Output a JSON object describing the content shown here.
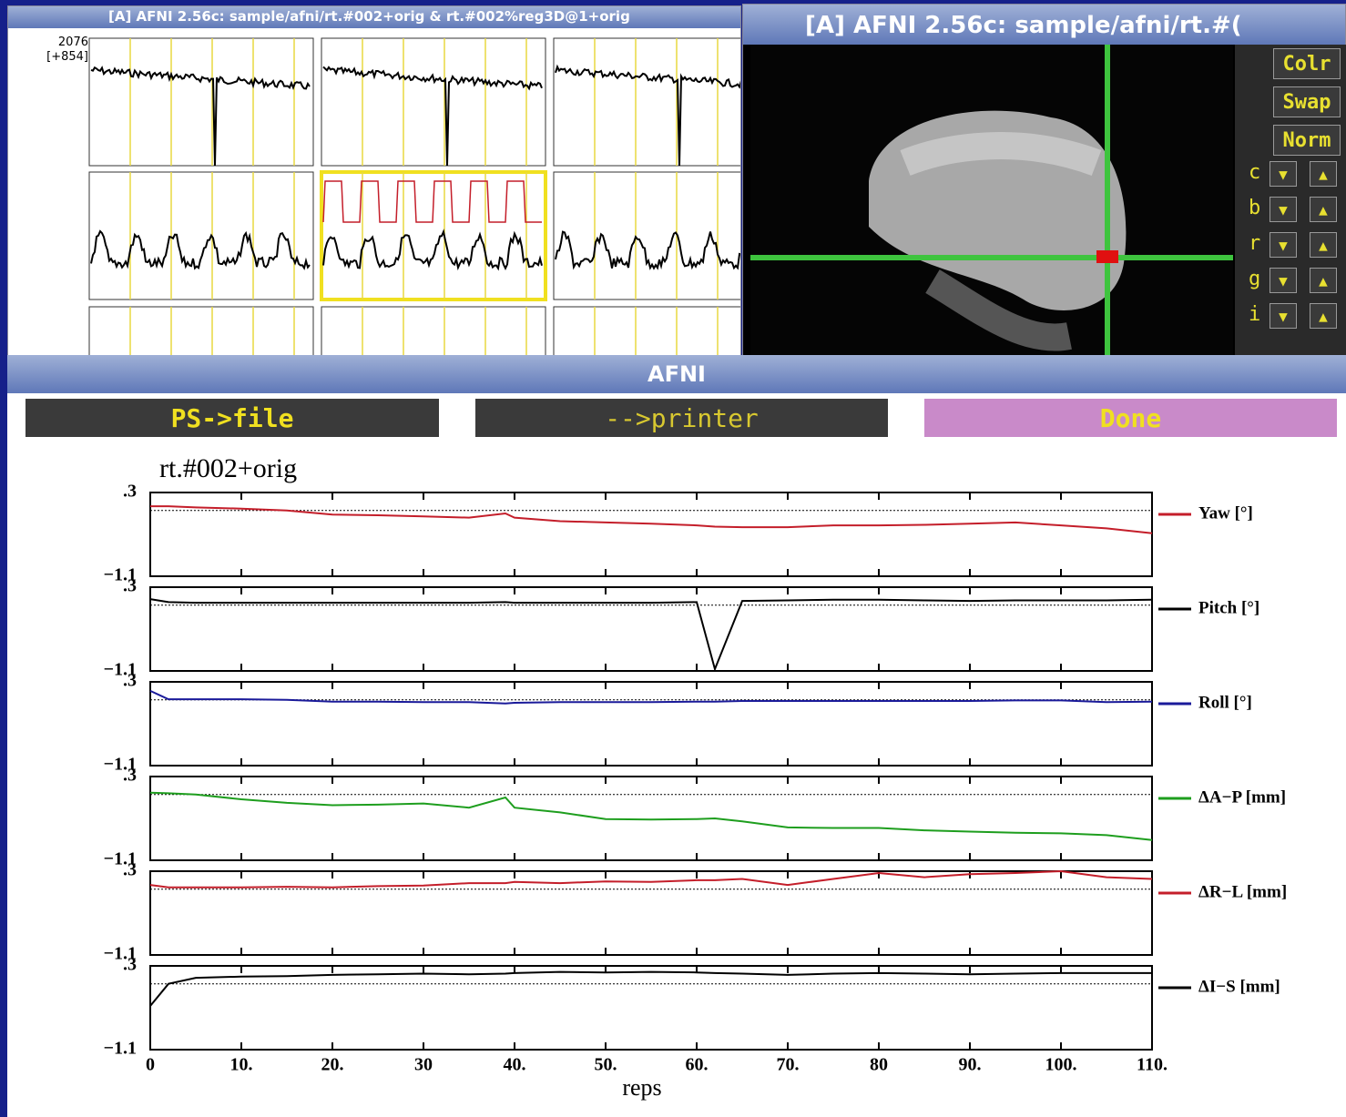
{
  "graph_window": {
    "title": "[A] AFNI 2.56c: sample/afni/rt.#002+orig & rt.#002%reg3D@1+orig",
    "top_value": "2076",
    "scale": "[+854]"
  },
  "image_window": {
    "title": "[A] AFNI 2.56c: sample/afni/rt.#(",
    "buttons": [
      "Colr",
      "Swap",
      "Norm"
    ],
    "row_labels": [
      "c",
      "b",
      "r",
      "g",
      "i"
    ]
  },
  "plot_window": {
    "title": "AFNI",
    "buttons": [
      "PS->file",
      "-->printer",
      "Done"
    ]
  },
  "chart_data": {
    "type": "line",
    "subplots": true,
    "title": "rt.#002+orig",
    "x_label": "reps",
    "x": [
      0,
      2,
      5,
      10,
      15,
      20,
      25,
      30,
      35,
      39,
      40,
      45,
      50,
      55,
      60,
      62,
      65,
      70,
      75,
      80,
      85,
      90,
      95,
      100,
      105,
      110
    ],
    "xlim": [
      0,
      110
    ],
    "xticks": [
      0,
      {
        "value": 10,
        "label": "10."
      },
      {
        "value": 20,
        "label": "20."
      },
      30,
      {
        "value": 40,
        "label": "40."
      },
      {
        "value": 50,
        "label": "50."
      },
      {
        "value": 60,
        "label": "60."
      },
      {
        "value": 70,
        "label": "70."
      },
      80,
      {
        "value": 90,
        "label": "90."
      },
      {
        "value": 100,
        "label": "100."
      },
      {
        "value": 110,
        "label": "110."
      }
    ],
    "ylim": [
      -1.1,
      0.3
    ],
    "yticks": [
      {
        "value": -1.1,
        "label": "−1.1"
      },
      {
        "value": 0.3,
        "label": ".3"
      }
    ],
    "series": [
      {
        "name": "Yaw [°]",
        "color": "#c41e2a",
        "values": [
          0.07,
          0.07,
          0.05,
          0.03,
          0.0,
          -0.07,
          -0.08,
          -0.1,
          -0.12,
          -0.05,
          -0.12,
          -0.18,
          -0.2,
          -0.22,
          -0.25,
          -0.27,
          -0.28,
          -0.28,
          -0.25,
          -0.25,
          -0.24,
          -0.22,
          -0.2,
          -0.25,
          -0.3,
          -0.38
        ]
      },
      {
        "name": "Pitch [°]",
        "color": "#000000",
        "values": [
          0.1,
          0.05,
          0.04,
          0.04,
          0.04,
          0.04,
          0.04,
          0.04,
          0.04,
          0.05,
          0.04,
          0.04,
          0.04,
          0.04,
          0.05,
          -1.07,
          0.07,
          0.08,
          0.09,
          0.09,
          0.08,
          0.07,
          0.08,
          0.08,
          0.08,
          0.09
        ]
      },
      {
        "name": "Roll [°]",
        "color": "#1a1a9a",
        "values": [
          0.15,
          0.01,
          0.01,
          0.01,
          0.0,
          -0.03,
          -0.03,
          -0.04,
          -0.04,
          -0.06,
          -0.05,
          -0.04,
          -0.04,
          -0.04,
          -0.03,
          -0.03,
          -0.02,
          -0.02,
          -0.02,
          -0.02,
          -0.02,
          -0.02,
          -0.01,
          -0.01,
          -0.04,
          -0.03
        ]
      },
      {
        "name": "ΔA−P [mm]",
        "color": "#1e9e1e",
        "values": [
          0.03,
          0.02,
          0.0,
          -0.08,
          -0.14,
          -0.18,
          -0.17,
          -0.15,
          -0.22,
          -0.05,
          -0.22,
          -0.3,
          -0.41,
          -0.42,
          -0.41,
          -0.4,
          -0.45,
          -0.55,
          -0.56,
          -0.56,
          -0.6,
          -0.62,
          -0.64,
          -0.65,
          -0.68,
          -0.76
        ]
      },
      {
        "name": "ΔR−L [mm]",
        "color": "#c41e2a",
        "values": [
          0.07,
          0.03,
          0.03,
          0.03,
          0.04,
          0.03,
          0.05,
          0.06,
          0.1,
          0.1,
          0.12,
          0.1,
          0.13,
          0.12,
          0.15,
          0.15,
          0.17,
          0.07,
          0.17,
          0.27,
          0.2,
          0.25,
          0.27,
          0.3,
          0.2,
          0.17
        ]
      },
      {
        "name": "ΔI−S [mm]",
        "color": "#000000",
        "values": [
          -0.37,
          0.0,
          0.1,
          0.12,
          0.13,
          0.15,
          0.16,
          0.17,
          0.16,
          0.17,
          0.18,
          0.2,
          0.19,
          0.2,
          0.19,
          0.18,
          0.17,
          0.15,
          0.17,
          0.18,
          0.17,
          0.16,
          0.17,
          0.18,
          0.18,
          0.18
        ]
      }
    ]
  }
}
